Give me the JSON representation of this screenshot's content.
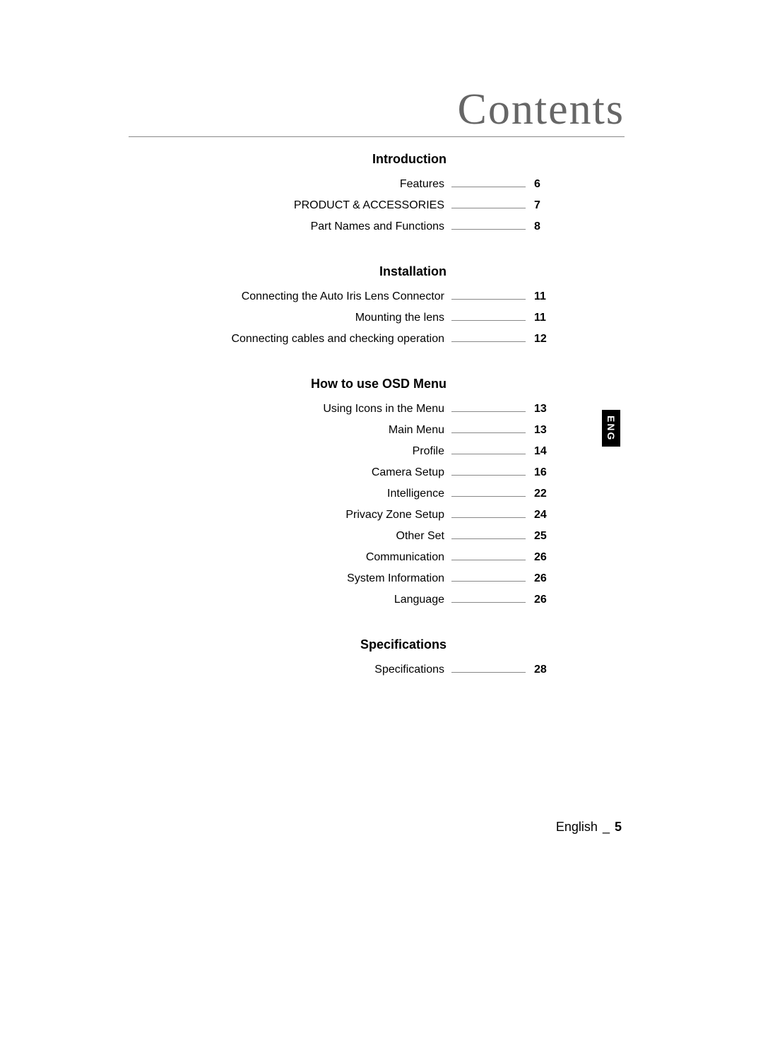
{
  "title": "Contents",
  "language_tab": "ENG",
  "footer": {
    "language": "English",
    "separator": "_",
    "page": "5"
  },
  "sections": [
    {
      "heading": "Introduction",
      "entries": [
        {
          "label": "Features",
          "page": "6"
        },
        {
          "label": "PRODUCT & ACCESSORIES",
          "page": "7"
        },
        {
          "label": "Part Names and Functions",
          "page": "8"
        }
      ]
    },
    {
      "heading": "Installation",
      "entries": [
        {
          "label": "Connecting the Auto Iris Lens Connector",
          "page": "11"
        },
        {
          "label": "Mounting the lens",
          "page": "11"
        },
        {
          "label": "Connecting cables and checking operation",
          "page": "12"
        }
      ]
    },
    {
      "heading": "How to use OSD Menu",
      "entries": [
        {
          "label": "Using Icons in the Menu",
          "page": "13"
        },
        {
          "label": "Main Menu",
          "page": "13"
        },
        {
          "label": "Profile",
          "page": "14"
        },
        {
          "label": "Camera Setup",
          "page": "16"
        },
        {
          "label": "Intelligence",
          "page": "22"
        },
        {
          "label": "Privacy Zone Setup",
          "page": "24"
        },
        {
          "label": "Other Set",
          "page": "25"
        },
        {
          "label": "Communication",
          "page": "26"
        },
        {
          "label": "System Information",
          "page": "26"
        },
        {
          "label": "Language",
          "page": "26"
        }
      ]
    },
    {
      "heading": "Specifications",
      "entries": [
        {
          "label": "Specifications",
          "page": "28"
        }
      ]
    }
  ],
  "styling": {
    "background_color": "#ffffff",
    "text_color": "#000000",
    "title_color": "#666666",
    "line_color": "#888888",
    "tab_bg": "#000000",
    "tab_fg": "#ffffff",
    "title_fontsize": 62,
    "section_heading_fontsize": 18,
    "entry_fontsize": 16,
    "footer_fontsize": 18
  }
}
